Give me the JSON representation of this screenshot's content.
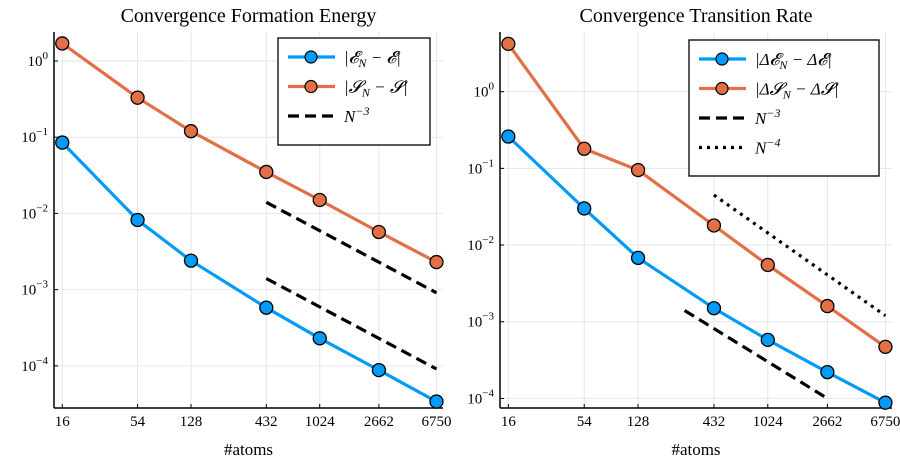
{
  "chart_data": [
    {
      "type": "line",
      "title": "Convergence Formation Energy",
      "xlabel": "#atoms",
      "ylabel": "",
      "x_scale": "log",
      "y_scale": "log",
      "x_ticks": [
        16,
        54,
        128,
        432,
        1024,
        2662,
        6750
      ],
      "x_tick_labels": [
        "16",
        "54",
        "128",
        "432",
        "1024",
        "2662",
        "6750"
      ],
      "y_ticks": [
        0.0001,
        0.001,
        0.01,
        0.1,
        1
      ],
      "y_tick_labels": [
        {
          "base": "10",
          "exp": "−4"
        },
        {
          "base": "10",
          "exp": "−3"
        },
        {
          "base": "10",
          "exp": "−2"
        },
        {
          "base": "10",
          "exp": "−1"
        },
        {
          "base": "10",
          "exp": "0"
        }
      ],
      "xlim": [
        14,
        7500
      ],
      "ylim": [
        2.8e-05,
        2.4
      ],
      "grid": true,
      "legend_position": "top-right",
      "series": [
        {
          "name": "|𝓔N − 𝓔|",
          "color": "#009af9",
          "style": "solid",
          "markers": true,
          "x": [
            16,
            54,
            128,
            432,
            1024,
            2662,
            6750
          ],
          "y": [
            0.085,
            0.0082,
            0.0024,
            0.00058,
            0.00023,
            8.8e-05,
            3.4e-05
          ]
        },
        {
          "name": "|𝓢N − 𝓢|",
          "color": "#e26f46",
          "style": "solid",
          "markers": true,
          "x": [
            16,
            54,
            128,
            432,
            1024,
            2662,
            6750
          ],
          "y": [
            1.7,
            0.33,
            0.12,
            0.035,
            0.015,
            0.0057,
            0.0023
          ]
        },
        {
          "name": "N−3",
          "color": "#000000",
          "style": "dashed",
          "markers": false,
          "x": [
            432,
            6750
          ],
          "y": [
            0.014,
            0.00091
          ]
        },
        {
          "name": "",
          "color": "#000000",
          "style": "dashed",
          "markers": false,
          "x": [
            432,
            6750
          ],
          "y": [
            0.0014,
            9.1e-05
          ]
        }
      ]
    },
    {
      "type": "line",
      "title": "Convergence Transition Rate",
      "xlabel": "#atoms",
      "ylabel": "",
      "x_scale": "log",
      "y_scale": "log",
      "x_ticks": [
        16,
        54,
        128,
        432,
        1024,
        2662,
        6750
      ],
      "x_tick_labels": [
        "16",
        "54",
        "128",
        "432",
        "1024",
        "2662",
        "6750"
      ],
      "y_ticks": [
        0.0001,
        0.001,
        0.01,
        0.1,
        1
      ],
      "y_tick_labels": [
        {
          "base": "10",
          "exp": "−4"
        },
        {
          "base": "10",
          "exp": "−3"
        },
        {
          "base": "10",
          "exp": "−2"
        },
        {
          "base": "10",
          "exp": "−1"
        },
        {
          "base": "10",
          "exp": "0"
        }
      ],
      "xlim": [
        14,
        7500
      ],
      "ylim": [
        7.5e-05,
        6.0
      ],
      "grid": true,
      "legend_position": "top-right",
      "series": [
        {
          "name": "|Δ𝓔N − Δ𝓔|",
          "color": "#009af9",
          "style": "solid",
          "markers": true,
          "x": [
            16,
            54,
            128,
            432,
            1024,
            2662,
            6750
          ],
          "y": [
            0.26,
            0.03,
            0.0068,
            0.0015,
            0.00058,
            0.00022,
            8.8e-05
          ]
        },
        {
          "name": "|Δ𝓢N − Δ𝓢|",
          "color": "#e26f46",
          "style": "solid",
          "markers": true,
          "x": [
            16,
            54,
            128,
            432,
            1024,
            2662,
            6750
          ],
          "y": [
            4.2,
            0.18,
            0.095,
            0.018,
            0.0055,
            0.0016,
            0.00047
          ]
        },
        {
          "name": "N−3",
          "color": "#000000",
          "style": "dashed",
          "markers": false,
          "x": [
            270,
            2662
          ],
          "y": [
            0.0014,
            0.0001
          ]
        },
        {
          "name": "N−4",
          "color": "#000000",
          "style": "dotted",
          "markers": false,
          "x": [
            432,
            6750
          ],
          "y": [
            0.045,
            0.0012
          ]
        }
      ]
    }
  ]
}
